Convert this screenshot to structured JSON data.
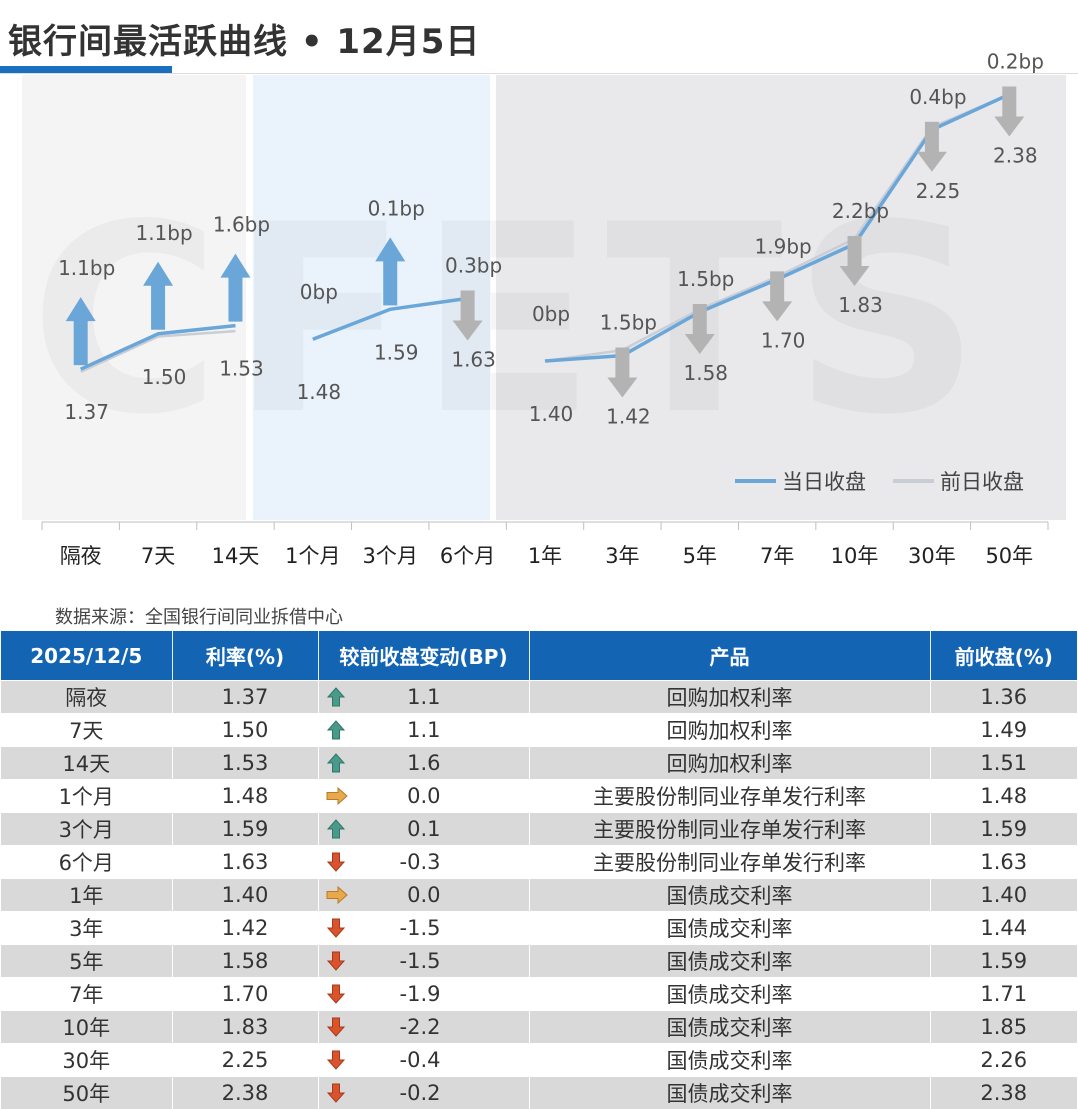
{
  "title": "银行间最活跃曲线 • 12月5日",
  "source": "数据来源：全国银行间同业拆借中心",
  "watermark": "CFETS",
  "colors": {
    "accent": "#1b6fbf",
    "today_line": "#6aa6d8",
    "prev_line": "#c9ced6",
    "up_arrow_chart": "#6aa6d8",
    "down_arrow_chart": "#b3b3b3",
    "table_header": "#1464b4",
    "table_stripe": "#d9d9d9",
    "icon_up": "#4a9a8a",
    "icon_flat": "#e8a94a",
    "icon_down": "#d9542c"
  },
  "chart_data": {
    "type": "line",
    "categories": [
      "隔夜",
      "7天",
      "14天",
      "1个月",
      "3个月",
      "6个月",
      "1年",
      "3年",
      "5年",
      "7年",
      "10年",
      "30年",
      "50年"
    ],
    "segments": [
      [
        0,
        2
      ],
      [
        3,
        5
      ],
      [
        6,
        12
      ]
    ],
    "series": [
      {
        "name": "当日收盘",
        "values": [
          1.37,
          1.5,
          1.53,
          1.48,
          1.59,
          1.63,
          1.4,
          1.42,
          1.58,
          1.7,
          1.83,
          2.25,
          2.38
        ]
      },
      {
        "name": "前日收盘",
        "values": [
          1.36,
          1.49,
          1.51,
          1.48,
          1.59,
          1.63,
          1.4,
          1.44,
          1.59,
          1.71,
          1.85,
          2.26,
          2.38
        ]
      }
    ],
    "changes_bp": [
      1.1,
      1.1,
      1.6,
      0.0,
      0.1,
      -0.3,
      0.0,
      -1.5,
      -1.5,
      -1.9,
      -2.2,
      -0.4,
      -0.2
    ],
    "change_labels": [
      "1.1bp",
      "1.1bp",
      "1.6bp",
      "0bp",
      "0.1bp",
      "0.3bp",
      "0bp",
      "1.5bp",
      "1.5bp",
      "1.9bp",
      "2.2bp",
      "0.4bp",
      "0.2bp"
    ],
    "value_labels": [
      "1.37",
      "1.50",
      "1.53",
      "1.48",
      "1.59",
      "1.63",
      "1.40",
      "1.42",
      "1.58",
      "1.70",
      "1.83",
      "2.25",
      "2.38"
    ],
    "legend_position": "bottom-right",
    "grid": false
  },
  "table": {
    "headers": [
      "2025/12/5",
      "利率(%)",
      "较前收盘变动(BP)",
      "产品",
      "前收盘(%)"
    ],
    "rows": [
      {
        "term": "隔夜",
        "rate": "1.37",
        "dir": "up",
        "change": "1.1",
        "product": "回购加权利率",
        "prev": "1.36"
      },
      {
        "term": "7天",
        "rate": "1.50",
        "dir": "up",
        "change": "1.1",
        "product": "回购加权利率",
        "prev": "1.49"
      },
      {
        "term": "14天",
        "rate": "1.53",
        "dir": "up",
        "change": "1.6",
        "product": "回购加权利率",
        "prev": "1.51"
      },
      {
        "term": "1个月",
        "rate": "1.48",
        "dir": "flat",
        "change": "0.0",
        "product": "主要股份制同业存单发行利率",
        "prev": "1.48"
      },
      {
        "term": "3个月",
        "rate": "1.59",
        "dir": "up",
        "change": "0.1",
        "product": "主要股份制同业存单发行利率",
        "prev": "1.59"
      },
      {
        "term": "6个月",
        "rate": "1.63",
        "dir": "down",
        "change": "-0.3",
        "product": "主要股份制同业存单发行利率",
        "prev": "1.63"
      },
      {
        "term": "1年",
        "rate": "1.40",
        "dir": "flat",
        "change": "0.0",
        "product": "国债成交利率",
        "prev": "1.40"
      },
      {
        "term": "3年",
        "rate": "1.42",
        "dir": "down",
        "change": "-1.5",
        "product": "国债成交利率",
        "prev": "1.44"
      },
      {
        "term": "5年",
        "rate": "1.58",
        "dir": "down",
        "change": "-1.5",
        "product": "国债成交利率",
        "prev": "1.59"
      },
      {
        "term": "7年",
        "rate": "1.70",
        "dir": "down",
        "change": "-1.9",
        "product": "国债成交利率",
        "prev": "1.71"
      },
      {
        "term": "10年",
        "rate": "1.83",
        "dir": "down",
        "change": "-2.2",
        "product": "国债成交利率",
        "prev": "1.85"
      },
      {
        "term": "30年",
        "rate": "2.25",
        "dir": "down",
        "change": "-0.4",
        "product": "国债成交利率",
        "prev": "2.26"
      },
      {
        "term": "50年",
        "rate": "2.38",
        "dir": "down",
        "change": "-0.2",
        "product": "国债成交利率",
        "prev": "2.38"
      }
    ]
  }
}
